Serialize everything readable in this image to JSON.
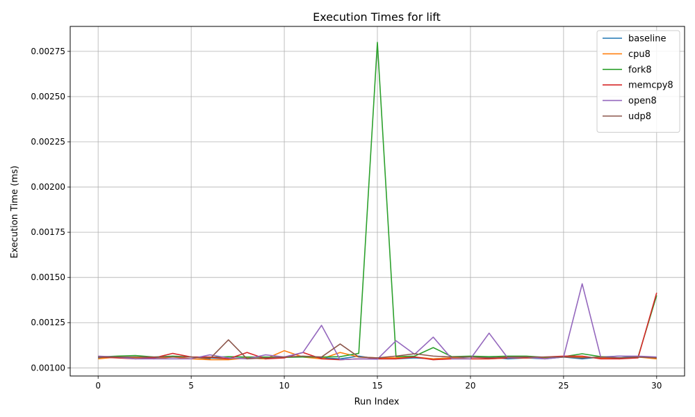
{
  "chart_data": {
    "type": "line",
    "title": "Execution Times for lift",
    "xlabel": "Run Index",
    "ylabel": "Execution Time (ms)",
    "xlim": [
      -1.5,
      31.5
    ],
    "ylim": [
      0.000955,
      0.002888
    ],
    "xticks": [
      0,
      5,
      10,
      15,
      20,
      25,
      30
    ],
    "xtick_labels": [
      "0",
      "5",
      "10",
      "15",
      "20",
      "25",
      "30"
    ],
    "yticks": [
      0.001,
      0.00125,
      0.0015,
      0.00175,
      0.002,
      0.00225,
      0.0025,
      0.00275
    ],
    "ytick_labels": [
      "0.00100",
      "0.00125",
      "0.00150",
      "0.00175",
      "0.00200",
      "0.00225",
      "0.00250",
      "0.00275"
    ],
    "grid": true,
    "legend_position": "top-right",
    "x": [
      0,
      1,
      2,
      3,
      4,
      5,
      6,
      7,
      8,
      9,
      10,
      11,
      12,
      13,
      14,
      15,
      16,
      17,
      18,
      19,
      20,
      21,
      22,
      23,
      24,
      25,
      26,
      27,
      28,
      29,
      30
    ],
    "series": [
      {
        "name": "baseline",
        "color": "#1f77b4",
        "values": [
          0.001055,
          0.00106,
          0.001055,
          0.001055,
          0.00106,
          0.00106,
          0.001055,
          0.00105,
          0.001055,
          0.00105,
          0.00106,
          0.00106,
          0.001055,
          0.00105,
          0.001065,
          0.00105,
          0.00105,
          0.001055,
          0.00105,
          0.001055,
          0.00106,
          0.00106,
          0.00105,
          0.001055,
          0.00105,
          0.00106,
          0.00105,
          0.00106,
          0.001065,
          0.00106,
          0.001055
        ]
      },
      {
        "name": "cpu8",
        "color": "#ff7f0e",
        "values": [
          0.00105,
          0.00106,
          0.001055,
          0.00105,
          0.00106,
          0.00105,
          0.001045,
          0.001045,
          0.001055,
          0.00105,
          0.001095,
          0.00106,
          0.00105,
          0.001085,
          0.00106,
          0.001055,
          0.001055,
          0.00106,
          0.00105,
          0.001055,
          0.00105,
          0.00105,
          0.001055,
          0.001055,
          0.001055,
          0.00106,
          0.00106,
          0.001055,
          0.00105,
          0.00106,
          0.00105
        ]
      },
      {
        "name": "fork8",
        "color": "#2ca02c",
        "values": [
          0.00106,
          0.001065,
          0.001068,
          0.00106,
          0.001065,
          0.00106,
          0.001058,
          0.001062,
          0.00106,
          0.00106,
          0.001058,
          0.00106,
          0.00106,
          0.001062,
          0.00108,
          0.0028,
          0.001062,
          0.001065,
          0.001112,
          0.001062,
          0.001065,
          0.001062,
          0.001065,
          0.001065,
          0.001058,
          0.001062,
          0.001078,
          0.001062,
          0.001055,
          0.00106,
          0.0014
        ]
      },
      {
        "name": "memcpy8",
        "color": "#d62728",
        "values": [
          0.00106,
          0.001055,
          0.00105,
          0.001055,
          0.00108,
          0.00106,
          0.00106,
          0.00105,
          0.001085,
          0.00105,
          0.001055,
          0.001085,
          0.00105,
          0.001045,
          0.00105,
          0.00105,
          0.00105,
          0.00106,
          0.001045,
          0.00105,
          0.00105,
          0.00105,
          0.001055,
          0.001055,
          0.00106,
          0.001065,
          0.001065,
          0.00105,
          0.00105,
          0.001055,
          0.001415
        ]
      },
      {
        "name": "open8",
        "color": "#9467bd",
        "values": [
          0.001065,
          0.00106,
          0.00105,
          0.00105,
          0.00105,
          0.00105,
          0.001072,
          0.001055,
          0.00105,
          0.001072,
          0.00106,
          0.001085,
          0.001235,
          0.001045,
          0.00105,
          0.001048,
          0.00115,
          0.001075,
          0.00117,
          0.00105,
          0.00105,
          0.001192,
          0.001055,
          0.00106,
          0.00105,
          0.00106,
          0.001465,
          0.001058,
          0.001065,
          0.001065,
          0.00106
        ]
      },
      {
        "name": "udp8",
        "color": "#8c564b",
        "values": [
          0.00106,
          0.00106,
          0.00106,
          0.00106,
          0.00106,
          0.00106,
          0.00105,
          0.001155,
          0.00105,
          0.001055,
          0.00106,
          0.001065,
          0.00106,
          0.001132,
          0.00106,
          0.001055,
          0.001065,
          0.001078,
          0.001065,
          0.00106,
          0.00106,
          0.001055,
          0.00106,
          0.00106,
          0.00106,
          0.00106,
          0.001055,
          0.00106,
          0.001055,
          0.00106,
          0.001055
        ]
      }
    ]
  }
}
